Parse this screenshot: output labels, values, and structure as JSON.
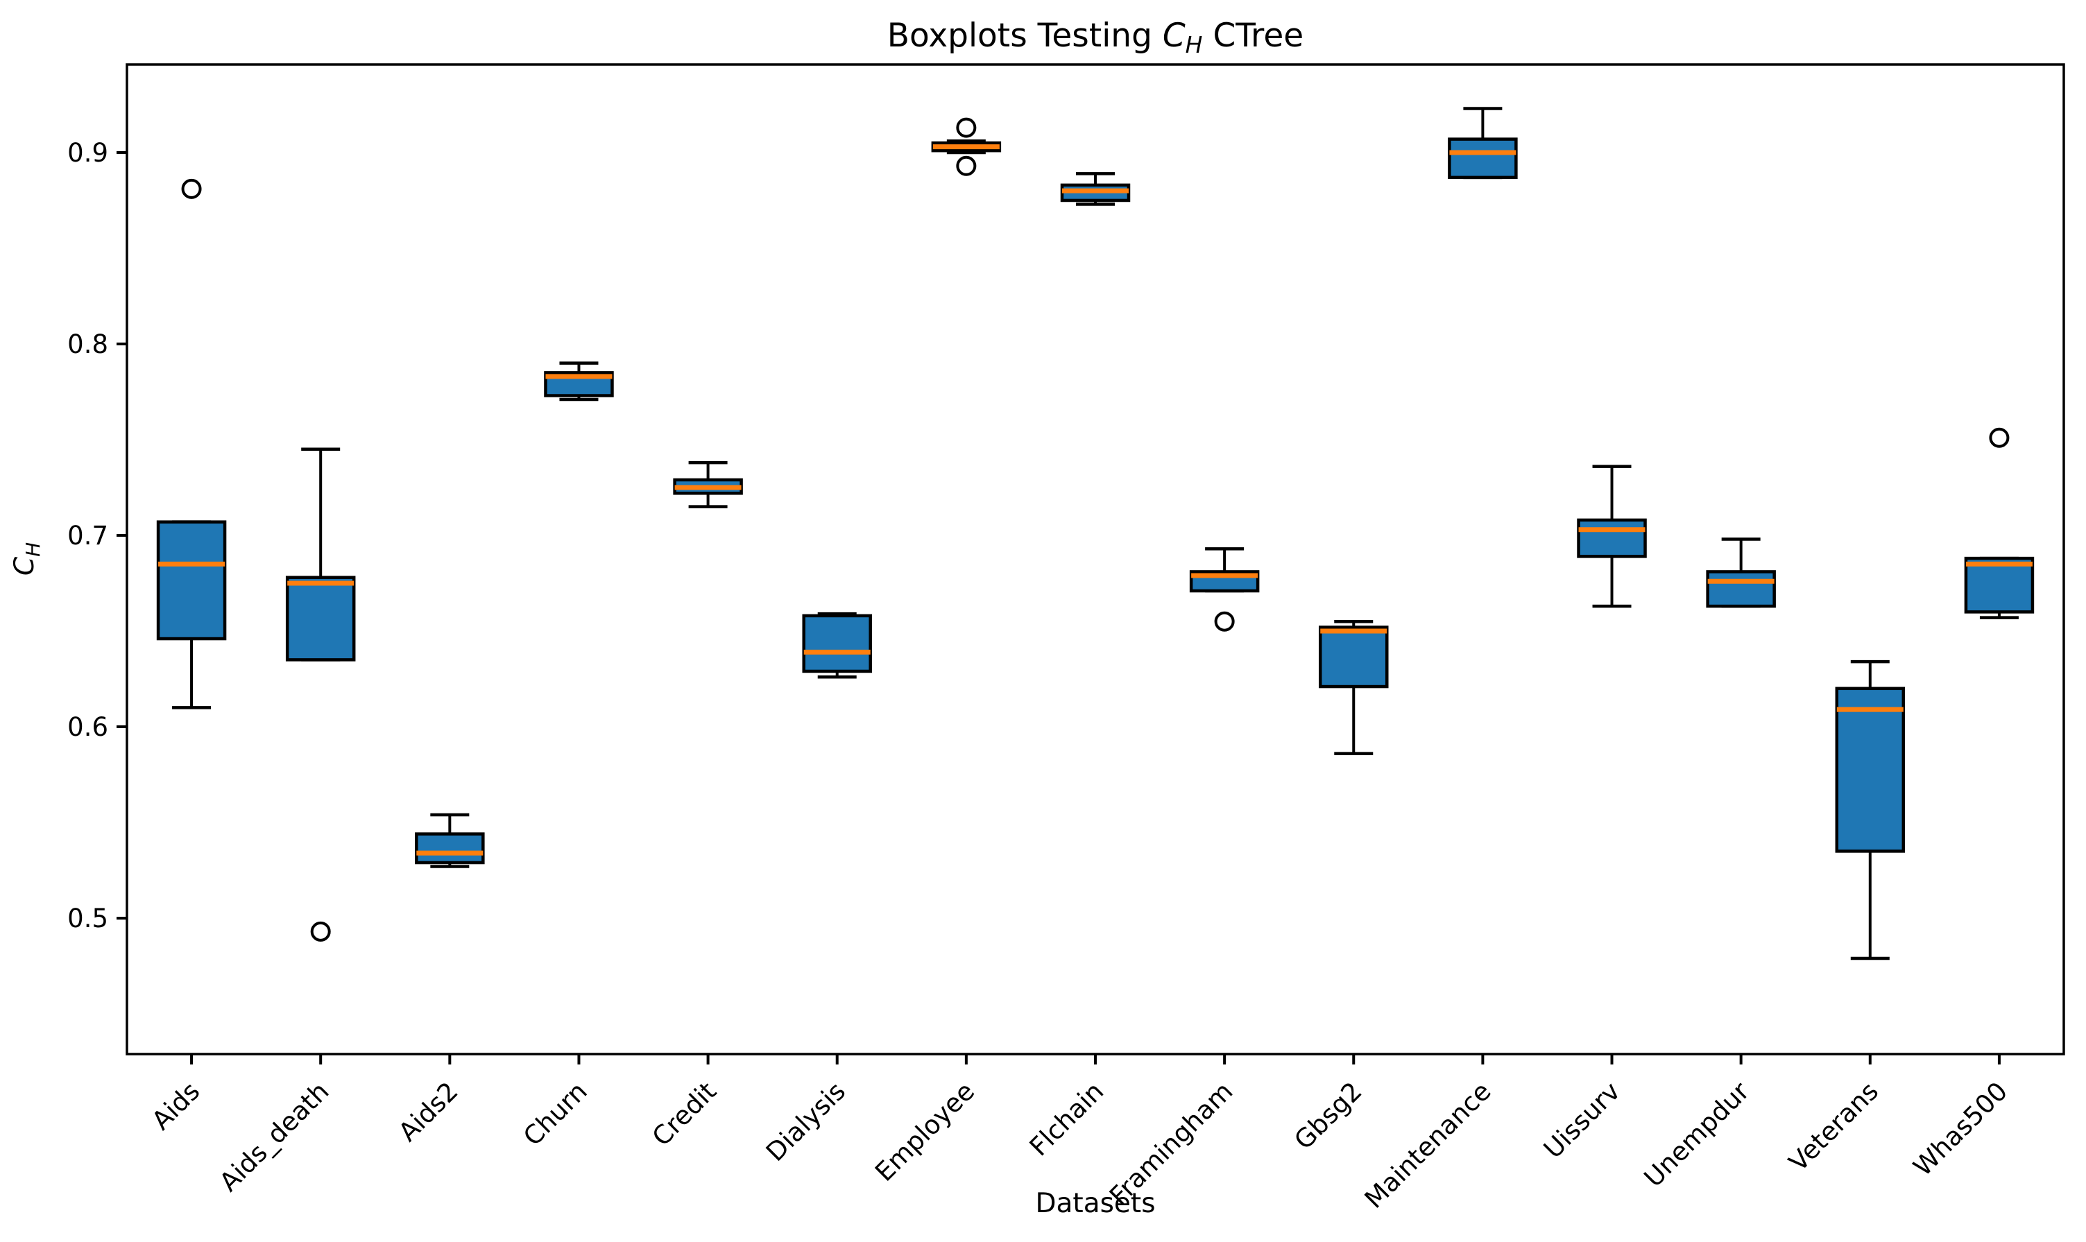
{
  "figure": {
    "title": {
      "pre": "Boxplots Testing ",
      "var": "C",
      "var_sub": "H",
      "post": " CTree"
    },
    "xlabel": "Datasets",
    "ylabel": {
      "var": "C",
      "var_sub": "H"
    }
  },
  "colors": {
    "box_fill": "#1f77b4",
    "median": "#ff7f0e",
    "stroke": "#000000",
    "background": "#ffffff"
  },
  "chart_data": {
    "type": "boxplot",
    "title": "Boxplots Testing C_H CTree",
    "xlabel": "Datasets",
    "ylabel": "C_H",
    "ylim": [
      0.429,
      0.946
    ],
    "yticks": [
      0.5,
      0.6,
      0.7,
      0.8,
      0.9
    ],
    "grid": false,
    "legend": false,
    "datasets": [
      {
        "name": "Aids",
        "whislo": 0.61,
        "q1": 0.646,
        "med": 0.685,
        "q3": 0.707,
        "whishi": 0.707,
        "fliers": [
          0.881
        ]
      },
      {
        "name": "Aids_death",
        "whislo": 0.635,
        "q1": 0.635,
        "med": 0.675,
        "q3": 0.678,
        "whishi": 0.745,
        "fliers": [
          0.493
        ]
      },
      {
        "name": "Aids2",
        "whislo": 0.527,
        "q1": 0.529,
        "med": 0.534,
        "q3": 0.544,
        "whishi": 0.554,
        "fliers": []
      },
      {
        "name": "Churn",
        "whislo": 0.771,
        "q1": 0.773,
        "med": 0.783,
        "q3": 0.785,
        "whishi": 0.79,
        "fliers": []
      },
      {
        "name": "Credit",
        "whislo": 0.715,
        "q1": 0.722,
        "med": 0.725,
        "q3": 0.729,
        "whishi": 0.738,
        "fliers": []
      },
      {
        "name": "Dialysis",
        "whislo": 0.626,
        "q1": 0.629,
        "med": 0.639,
        "q3": 0.658,
        "whishi": 0.659,
        "fliers": []
      },
      {
        "name": "Employee",
        "whislo": 0.9,
        "q1": 0.901,
        "med": 0.903,
        "q3": 0.905,
        "whishi": 0.906,
        "fliers": [
          0.913,
          0.893
        ]
      },
      {
        "name": "Flchain",
        "whislo": 0.873,
        "q1": 0.875,
        "med": 0.88,
        "q3": 0.883,
        "whishi": 0.889,
        "fliers": []
      },
      {
        "name": "Framingham",
        "whislo": 0.671,
        "q1": 0.671,
        "med": 0.679,
        "q3": 0.681,
        "whishi": 0.693,
        "fliers": [
          0.655
        ]
      },
      {
        "name": "Gbsg2",
        "whislo": 0.586,
        "q1": 0.621,
        "med": 0.65,
        "q3": 0.652,
        "whishi": 0.655,
        "fliers": []
      },
      {
        "name": "Maintenance",
        "whislo": 0.887,
        "q1": 0.887,
        "med": 0.9,
        "q3": 0.907,
        "whishi": 0.923,
        "fliers": []
      },
      {
        "name": "Uissurv",
        "whislo": 0.663,
        "q1": 0.689,
        "med": 0.703,
        "q3": 0.708,
        "whishi": 0.736,
        "fliers": []
      },
      {
        "name": "Unempdur",
        "whislo": 0.663,
        "q1": 0.663,
        "med": 0.676,
        "q3": 0.681,
        "whishi": 0.698,
        "fliers": []
      },
      {
        "name": "Veterans",
        "whislo": 0.479,
        "q1": 0.535,
        "med": 0.609,
        "q3": 0.62,
        "whishi": 0.634,
        "fliers": []
      },
      {
        "name": "Whas500",
        "whislo": 0.657,
        "q1": 0.66,
        "med": 0.685,
        "q3": 0.688,
        "whishi": 0.688,
        "fliers": [
          0.751
        ]
      }
    ]
  }
}
